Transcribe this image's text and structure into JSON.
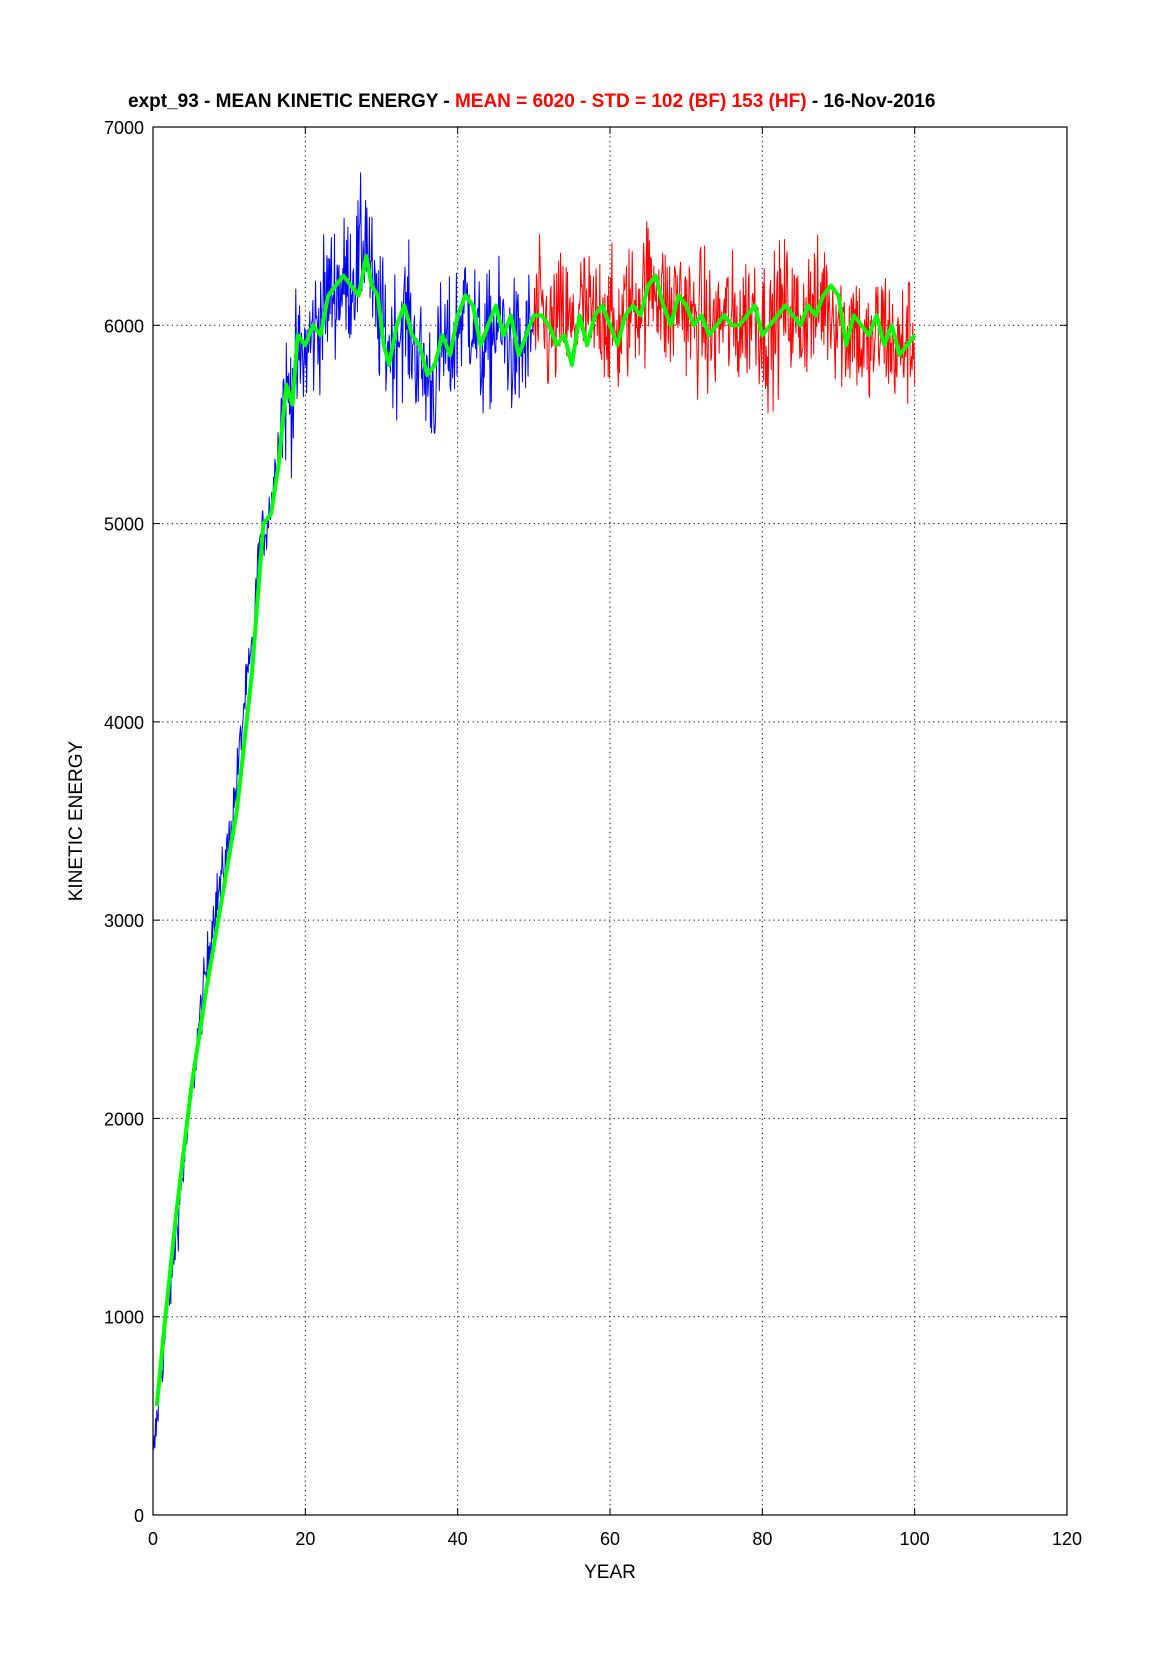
{
  "title": {
    "prefix": "expt_93 - MEAN KINETIC ENERGY - ",
    "stats": "MEAN =  6020 - STD =  102 (BF)  153 (HF)",
    "suffix": " - 16-Nov-2016"
  },
  "colors": {
    "title_black": "#000000",
    "title_stats": "#ff0000",
    "spinup_series": "#0000ff",
    "analysis_series": "#ff0000",
    "smoothed_series": "#00ff00",
    "grid": "#000000"
  },
  "chart_data": {
    "type": "line",
    "xlabel": "YEAR",
    "ylabel": "KINETIC ENERGY",
    "xlim": [
      0,
      120
    ],
    "ylim": [
      0,
      7000
    ],
    "xticks": [
      "0",
      "20",
      "40",
      "60",
      "80",
      "100",
      "120"
    ],
    "yticks": [
      "0",
      "1000",
      "2000",
      "3000",
      "4000",
      "5000",
      "6000",
      "7000"
    ],
    "grid": true,
    "series": [
      {
        "color": "blue",
        "style": "thin noisy line",
        "x": [
          0,
          1,
          2,
          3,
          4,
          5,
          6,
          7,
          8,
          9,
          10,
          11,
          12,
          13,
          14,
          15,
          16,
          17,
          18,
          19,
          20,
          21,
          22,
          23,
          24,
          25,
          26,
          27,
          28,
          29,
          30,
          31,
          32,
          33,
          34,
          35,
          36,
          37,
          38,
          39,
          40,
          41,
          42,
          43,
          44,
          45,
          46,
          47,
          48,
          49,
          50
        ],
        "y": [
          250,
          700,
          1050,
          1400,
          1750,
          2100,
          2450,
          2750,
          3050,
          3200,
          3400,
          3700,
          4100,
          4350,
          4900,
          5000,
          5250,
          5600,
          5650,
          5800,
          5850,
          5950,
          6050,
          6150,
          6200,
          6200,
          6250,
          6300,
          6500,
          6100,
          6000,
          5900,
          5950,
          6050,
          5950,
          5800,
          5750,
          5700,
          5900,
          5850,
          6000,
          6100,
          6050,
          5850,
          5900,
          6000,
          5950,
          5900,
          5850,
          5900,
          6000
        ]
      },
      {
        "color": "red",
        "style": "thin noisy line",
        "x": [
          50,
          51,
          52,
          53,
          54,
          55,
          56,
          57,
          58,
          59,
          60,
          61,
          62,
          63,
          64,
          65,
          66,
          67,
          68,
          69,
          70,
          71,
          72,
          73,
          74,
          75,
          76,
          77,
          78,
          79,
          80,
          81,
          82,
          83,
          84,
          85,
          86,
          87,
          88,
          89,
          90,
          91,
          92,
          93,
          94,
          95,
          96,
          97,
          98,
          99,
          100
        ],
        "y": [
          6000,
          6050,
          5950,
          6000,
          6050,
          5950,
          6100,
          6050,
          6000,
          6100,
          6000,
          5950,
          6050,
          6100,
          6150,
          6200,
          6250,
          6100,
          6050,
          6150,
          6100,
          6000,
          6050,
          5950,
          6000,
          6050,
          6000,
          6000,
          6050,
          6100,
          6000,
          5950,
          6050,
          6100,
          6050,
          6000,
          6100,
          6050,
          6150,
          6100,
          6050,
          5950,
          6050,
          5900,
          5850,
          5950,
          6000,
          5900,
          5850,
          5950,
          5900
        ]
      },
      {
        "color": "green",
        "style": "thick smoothed line",
        "x": [
          0.5,
          1.5,
          3,
          5,
          7,
          9,
          11,
          13,
          14.5,
          15.5,
          16.5,
          17.5,
          18.3,
          19,
          20,
          21,
          22,
          23,
          24,
          25,
          26,
          27,
          28,
          28.7,
          29.5,
          30.3,
          31,
          32,
          33,
          34,
          35,
          36,
          37,
          38,
          39,
          40,
          41,
          42,
          43,
          44,
          45,
          46,
          47,
          48,
          49,
          50,
          51,
          52,
          53,
          54,
          55,
          56,
          57,
          58,
          59,
          60,
          61,
          62,
          63,
          64,
          65,
          66,
          67,
          68,
          69,
          70,
          71,
          72,
          73,
          74,
          75,
          76,
          77,
          78,
          79,
          80,
          81,
          82,
          83,
          84,
          85,
          86,
          87,
          88,
          89,
          90,
          91,
          92,
          93,
          94,
          95,
          96,
          97,
          98,
          99,
          100
        ],
        "y": [
          550,
          950,
          1500,
          2150,
          2650,
          3100,
          3550,
          4250,
          5000,
          5050,
          5300,
          5700,
          5600,
          5950,
          5900,
          6000,
          5950,
          6150,
          6200,
          6250,
          6200,
          6150,
          6350,
          6200,
          6150,
          5900,
          5800,
          6000,
          6100,
          5950,
          5900,
          5750,
          5800,
          5950,
          5850,
          6050,
          6150,
          6100,
          5900,
          6000,
          6100,
          5950,
          6050,
          5850,
          5950,
          6050,
          6050,
          6000,
          5900,
          5950,
          5800,
          6050,
          5900,
          6050,
          6100,
          6000,
          5900,
          6050,
          6100,
          6050,
          6200,
          6250,
          6100,
          6000,
          6150,
          6100,
          6000,
          6050,
          5950,
          6000,
          6050,
          6000,
          6000,
          6050,
          6100,
          5950,
          6000,
          6050,
          6100,
          6050,
          6000,
          6100,
          6050,
          6150,
          6200,
          6150,
          5900,
          6050,
          6000,
          5950,
          6050,
          5900,
          6000,
          5850,
          5900,
          5950
        ]
      }
    ]
  }
}
